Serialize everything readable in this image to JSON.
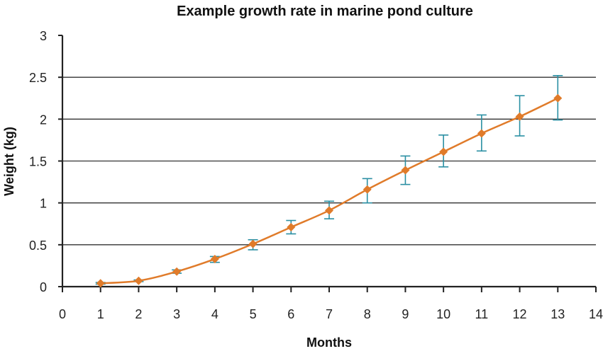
{
  "chart_data": {
    "type": "line",
    "title": "Example growth rate in marine pond culture",
    "xlabel": "Months",
    "ylabel": "Weight (kg)",
    "xlim": [
      0,
      14
    ],
    "ylim": [
      0,
      3
    ],
    "x_ticks": [
      "0",
      "1",
      "2",
      "3",
      "4",
      "5",
      "6",
      "7",
      "8",
      "9",
      "10",
      "11",
      "12",
      "13",
      "14"
    ],
    "y_ticks": [
      "0",
      "0.5",
      "1",
      "1.5",
      "2",
      "2.5",
      "3"
    ],
    "grid": "horizontal",
    "legend": "none",
    "colors": {
      "line": "#e07b2a",
      "error_bar": "#2a8fa3",
      "grid": "#333333"
    },
    "x": [
      1,
      2,
      3,
      4,
      5,
      6,
      7,
      8,
      9,
      10,
      11,
      12,
      13
    ],
    "series": [
      {
        "values": [
          0.04,
          0.07,
          0.18,
          0.33,
          0.51,
          0.71,
          0.91,
          1.16,
          1.39,
          1.61,
          1.83,
          2.03,
          2.25
        ],
        "error_low": [
          0.03,
          0.06,
          0.16,
          0.29,
          0.44,
          0.63,
          0.81,
          1.0,
          1.22,
          1.43,
          1.62,
          1.8,
          1.99
        ],
        "error_high": [
          0.05,
          0.08,
          0.2,
          0.36,
          0.56,
          0.79,
          1.02,
          1.29,
          1.56,
          1.81,
          2.05,
          2.28,
          2.52
        ]
      }
    ]
  }
}
